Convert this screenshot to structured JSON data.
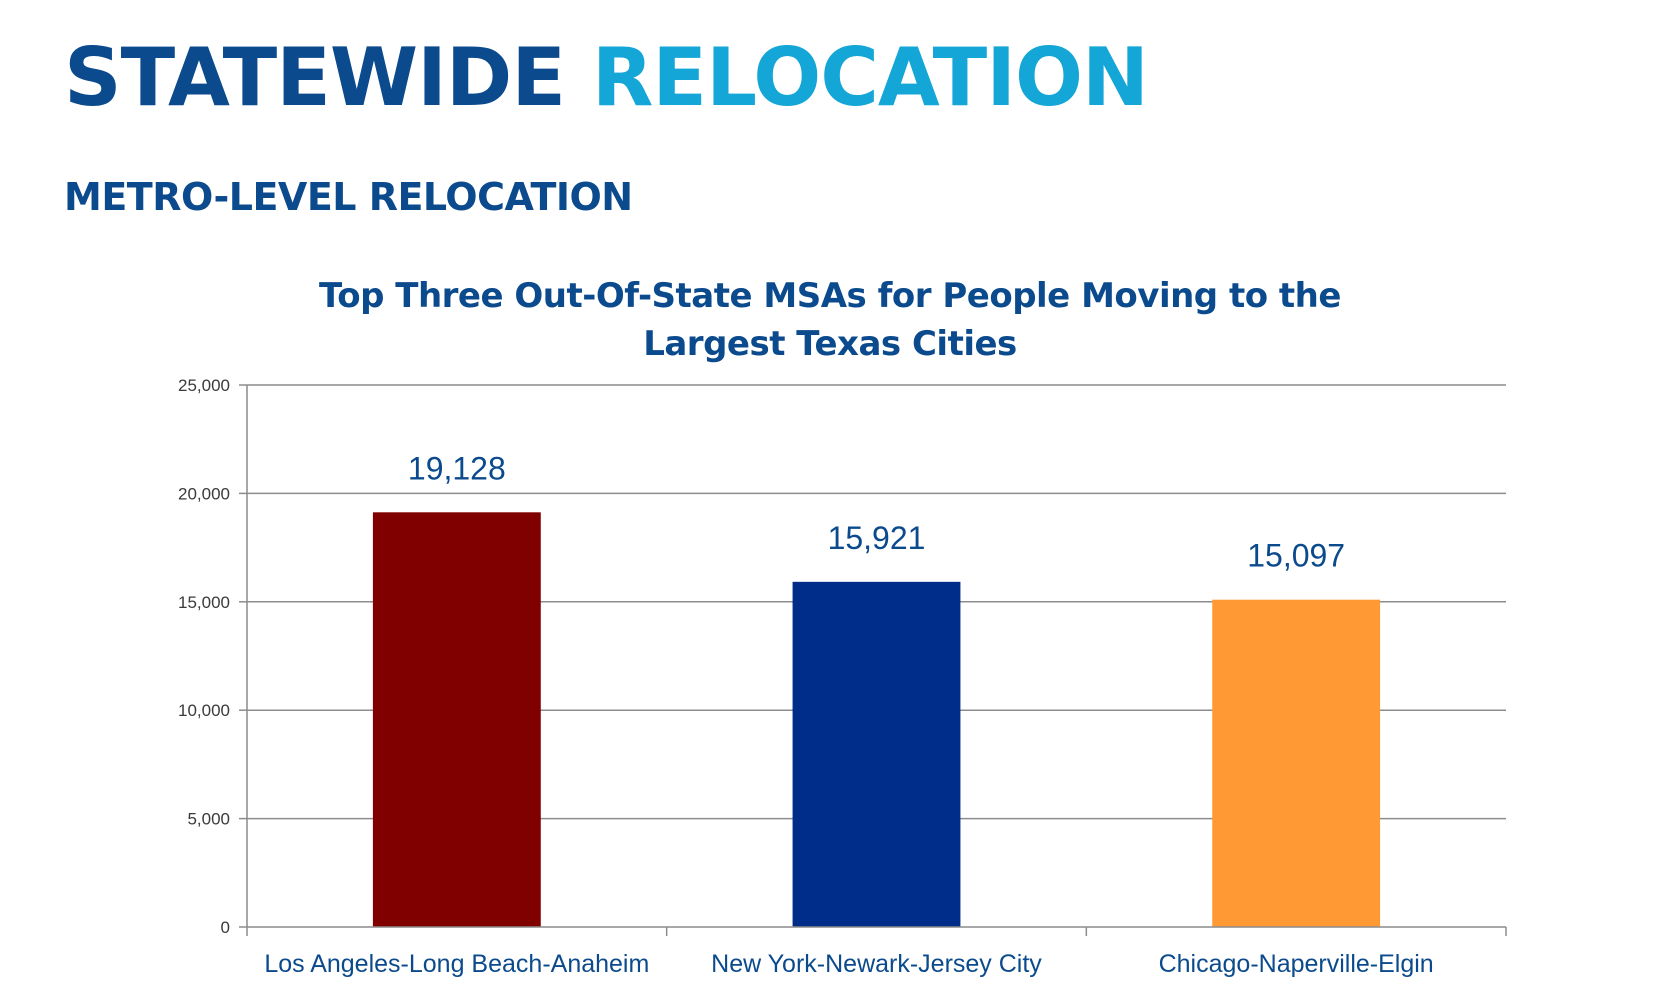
{
  "header": {
    "title_part1": "STATEWIDE",
    "title_part2": "RELOCATION",
    "subtitle": "METRO-LEVEL RELOCATION"
  },
  "colors": {
    "title_dark": "#0b4a8c",
    "title_light": "#14a6d6",
    "grid": "#8c8c8c"
  },
  "chart_data": {
    "type": "bar",
    "title_lines": [
      "Top Three Out-Of-State MSAs for People Moving to the",
      "Largest Texas Cities"
    ],
    "categories": [
      "Los Angeles-Long Beach-Anaheim",
      "New York-Newark-Jersey City",
      "Chicago-Naperville-Elgin"
    ],
    "values": [
      19128,
      15921,
      15097
    ],
    "data_labels": [
      "19,128",
      "15,921",
      "15,097"
    ],
    "bar_colors": [
      "#800000",
      "#002d89",
      "#ff9933"
    ],
    "ylim": [
      0,
      25000
    ],
    "yticks": [
      0,
      5000,
      10000,
      15000,
      20000,
      25000
    ],
    "ytick_labels": [
      "0",
      "5,000",
      "10,000",
      "15,000",
      "20,000",
      "25,000"
    ],
    "xlabel": "",
    "ylabel": "",
    "grid": true,
    "legend": "none"
  }
}
